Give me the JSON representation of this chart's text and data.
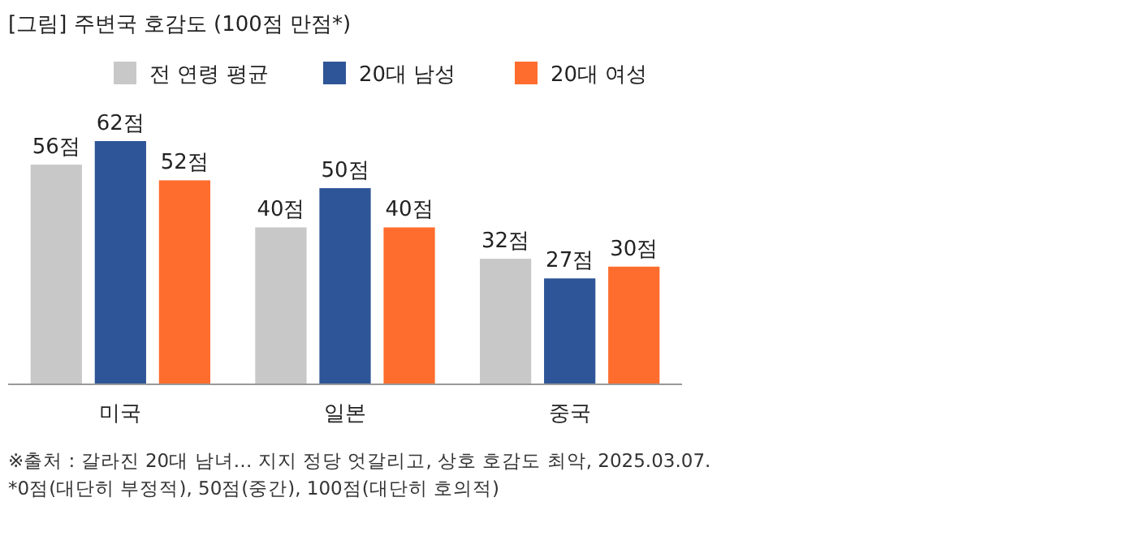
{
  "chart_data": {
    "type": "bar",
    "title": "[그림] 주변국 호감도 (100점 만점*)",
    "categories": [
      "미국",
      "일본",
      "중국"
    ],
    "series": [
      {
        "name": "전 연령 평균",
        "color": "#c8c8c8",
        "values": [
          56,
          40,
          32
        ],
        "value_labels": [
          "56점",
          "40점",
          "32점"
        ]
      },
      {
        "name": "20대 남성",
        "color": "#2e5597",
        "values": [
          62,
          50,
          27
        ],
        "value_labels": [
          "62점",
          "50점",
          "27점"
        ]
      },
      {
        "name": "20대 여성",
        "color": "#ff6d2e",
        "values": [
          52,
          40,
          30
        ],
        "value_labels": [
          "52점",
          "40점",
          "30점"
        ]
      }
    ],
    "legend": "top",
    "annotations": [
      "※출처 : 갈라진 20대 남녀… 지지 정당 엇갈리고, 상호 호감도 최악, 2025.03.07.",
      "*0점(대단히 부정적), 50점(중간), 100점(대단히 호의적)"
    ]
  }
}
